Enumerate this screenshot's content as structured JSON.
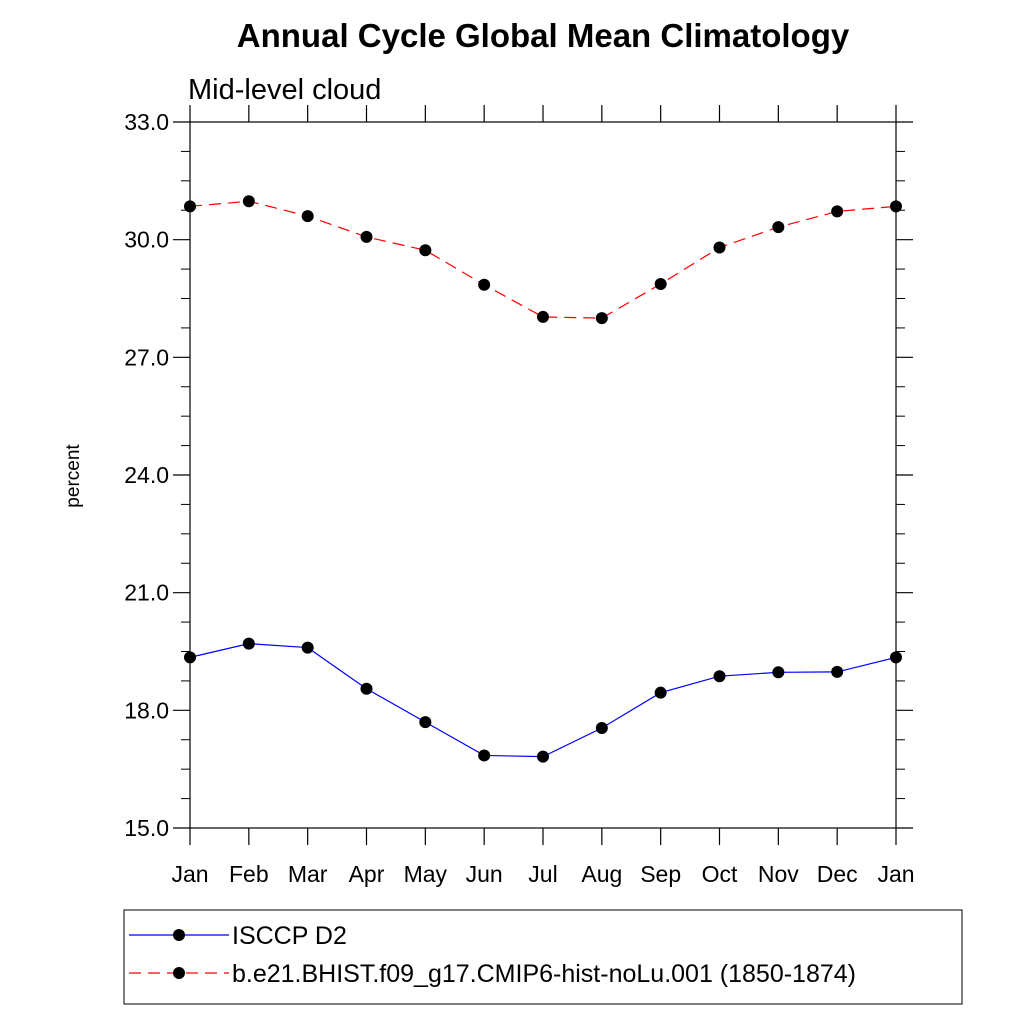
{
  "chart_data": {
    "type": "line",
    "title": "Annual Cycle Global Mean Climatology",
    "subtitle": "Mid-level cloud",
    "xlabel": "",
    "ylabel": "percent",
    "categories": [
      "Jan",
      "Feb",
      "Mar",
      "Apr",
      "May",
      "Jun",
      "Jul",
      "Aug",
      "Sep",
      "Oct",
      "Nov",
      "Dec",
      "Jan"
    ],
    "ylim": [
      15.0,
      33.0
    ],
    "yticks": [
      "15.0",
      "18.0",
      "21.0",
      "24.0",
      "27.0",
      "30.0",
      "33.0"
    ],
    "grid": false,
    "legend_position": "bottom",
    "series": [
      {
        "name": "ISCCP D2",
        "color": "#0000ff",
        "line_style": "solid",
        "marker": "filled-circle",
        "values": [
          19.35,
          19.7,
          19.6,
          18.55,
          17.7,
          16.85,
          16.82,
          17.55,
          18.45,
          18.87,
          18.97,
          18.98,
          19.35
        ]
      },
      {
        "name": "b.e21.BHIST.f09_g17.CMIP6-hist-noLu.001 (1850-1874)",
        "color": "#ff0000",
        "line_style": "dashed",
        "marker": "filled-circle",
        "values": [
          30.85,
          30.98,
          30.6,
          30.07,
          29.73,
          28.85,
          28.03,
          28.0,
          28.87,
          29.8,
          30.32,
          30.72,
          30.85
        ]
      }
    ]
  }
}
